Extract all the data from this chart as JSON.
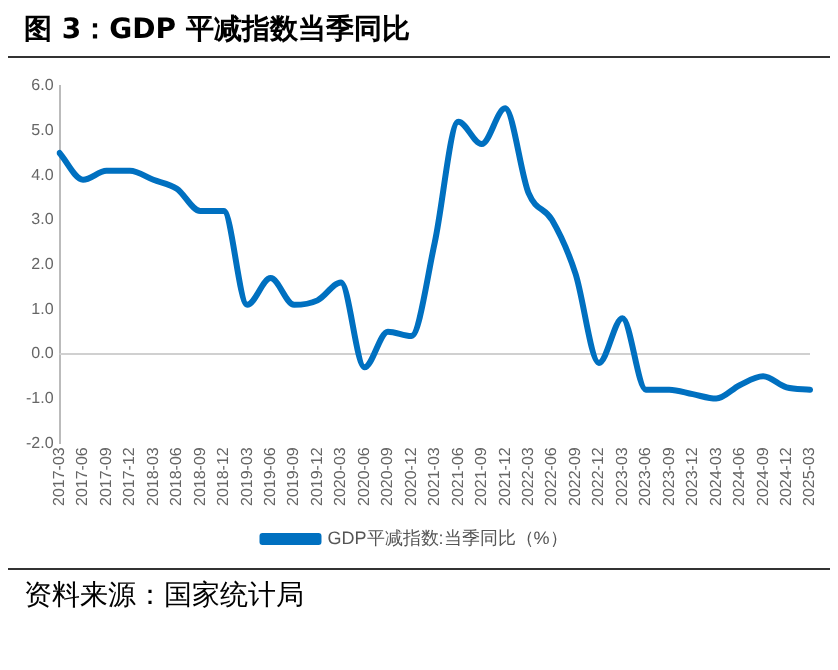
{
  "chart_data": {
    "type": "line",
    "title": "图 3：GDP 平减指数当季同比",
    "categories": [
      "2017-03",
      "2017-06",
      "2017-09",
      "2017-12",
      "2018-03",
      "2018-06",
      "2018-09",
      "2018-12",
      "2019-03",
      "2019-06",
      "2019-09",
      "2019-12",
      "2020-03",
      "2020-06",
      "2020-09",
      "2020-12",
      "2021-03",
      "2021-06",
      "2021-09",
      "2021-12",
      "2022-03",
      "2022-06",
      "2022-09",
      "2022-12",
      "2023-03",
      "2023-06",
      "2023-09",
      "2023-12",
      "2024-03",
      "2024-06",
      "2024-09",
      "2024-12",
      "2025-03"
    ],
    "series": [
      {
        "name": "GDP平减指数:当季同比（%）",
        "color": "#0070c0",
        "values": [
          4.5,
          3.9,
          4.1,
          4.1,
          3.9,
          3.7,
          3.2,
          3.2,
          1.1,
          1.7,
          1.1,
          1.2,
          1.6,
          -0.3,
          0.5,
          0.4,
          2.5,
          5.2,
          4.7,
          5.5,
          3.6,
          3.0,
          1.8,
          -0.2,
          0.8,
          -0.8,
          -0.8,
          -0.9,
          -1.0,
          -0.7,
          -0.5,
          -0.75,
          -0.8
        ]
      }
    ],
    "ylim": [
      -2,
      6
    ],
    "yticks": [
      {
        "value": -2,
        "label": "-2.0"
      },
      {
        "value": -1,
        "label": "-1.0"
      },
      {
        "value": 0,
        "label": "0.0"
      },
      {
        "value": 1,
        "label": "1.0"
      },
      {
        "value": 2,
        "label": "2.0"
      },
      {
        "value": 3,
        "label": "3.0"
      },
      {
        "value": 4,
        "label": "4.0"
      },
      {
        "value": 5,
        "label": "5.0"
      },
      {
        "value": 6,
        "label": "6.0"
      }
    ],
    "grid": false,
    "ref_lines": [
      {
        "axis": "y",
        "value": 0,
        "color": "#d0d0d0"
      }
    ],
    "legend": "bottom",
    "marker": "none",
    "line_style": "solid",
    "annotations": [
      "资料来源：国家统计局"
    ]
  }
}
